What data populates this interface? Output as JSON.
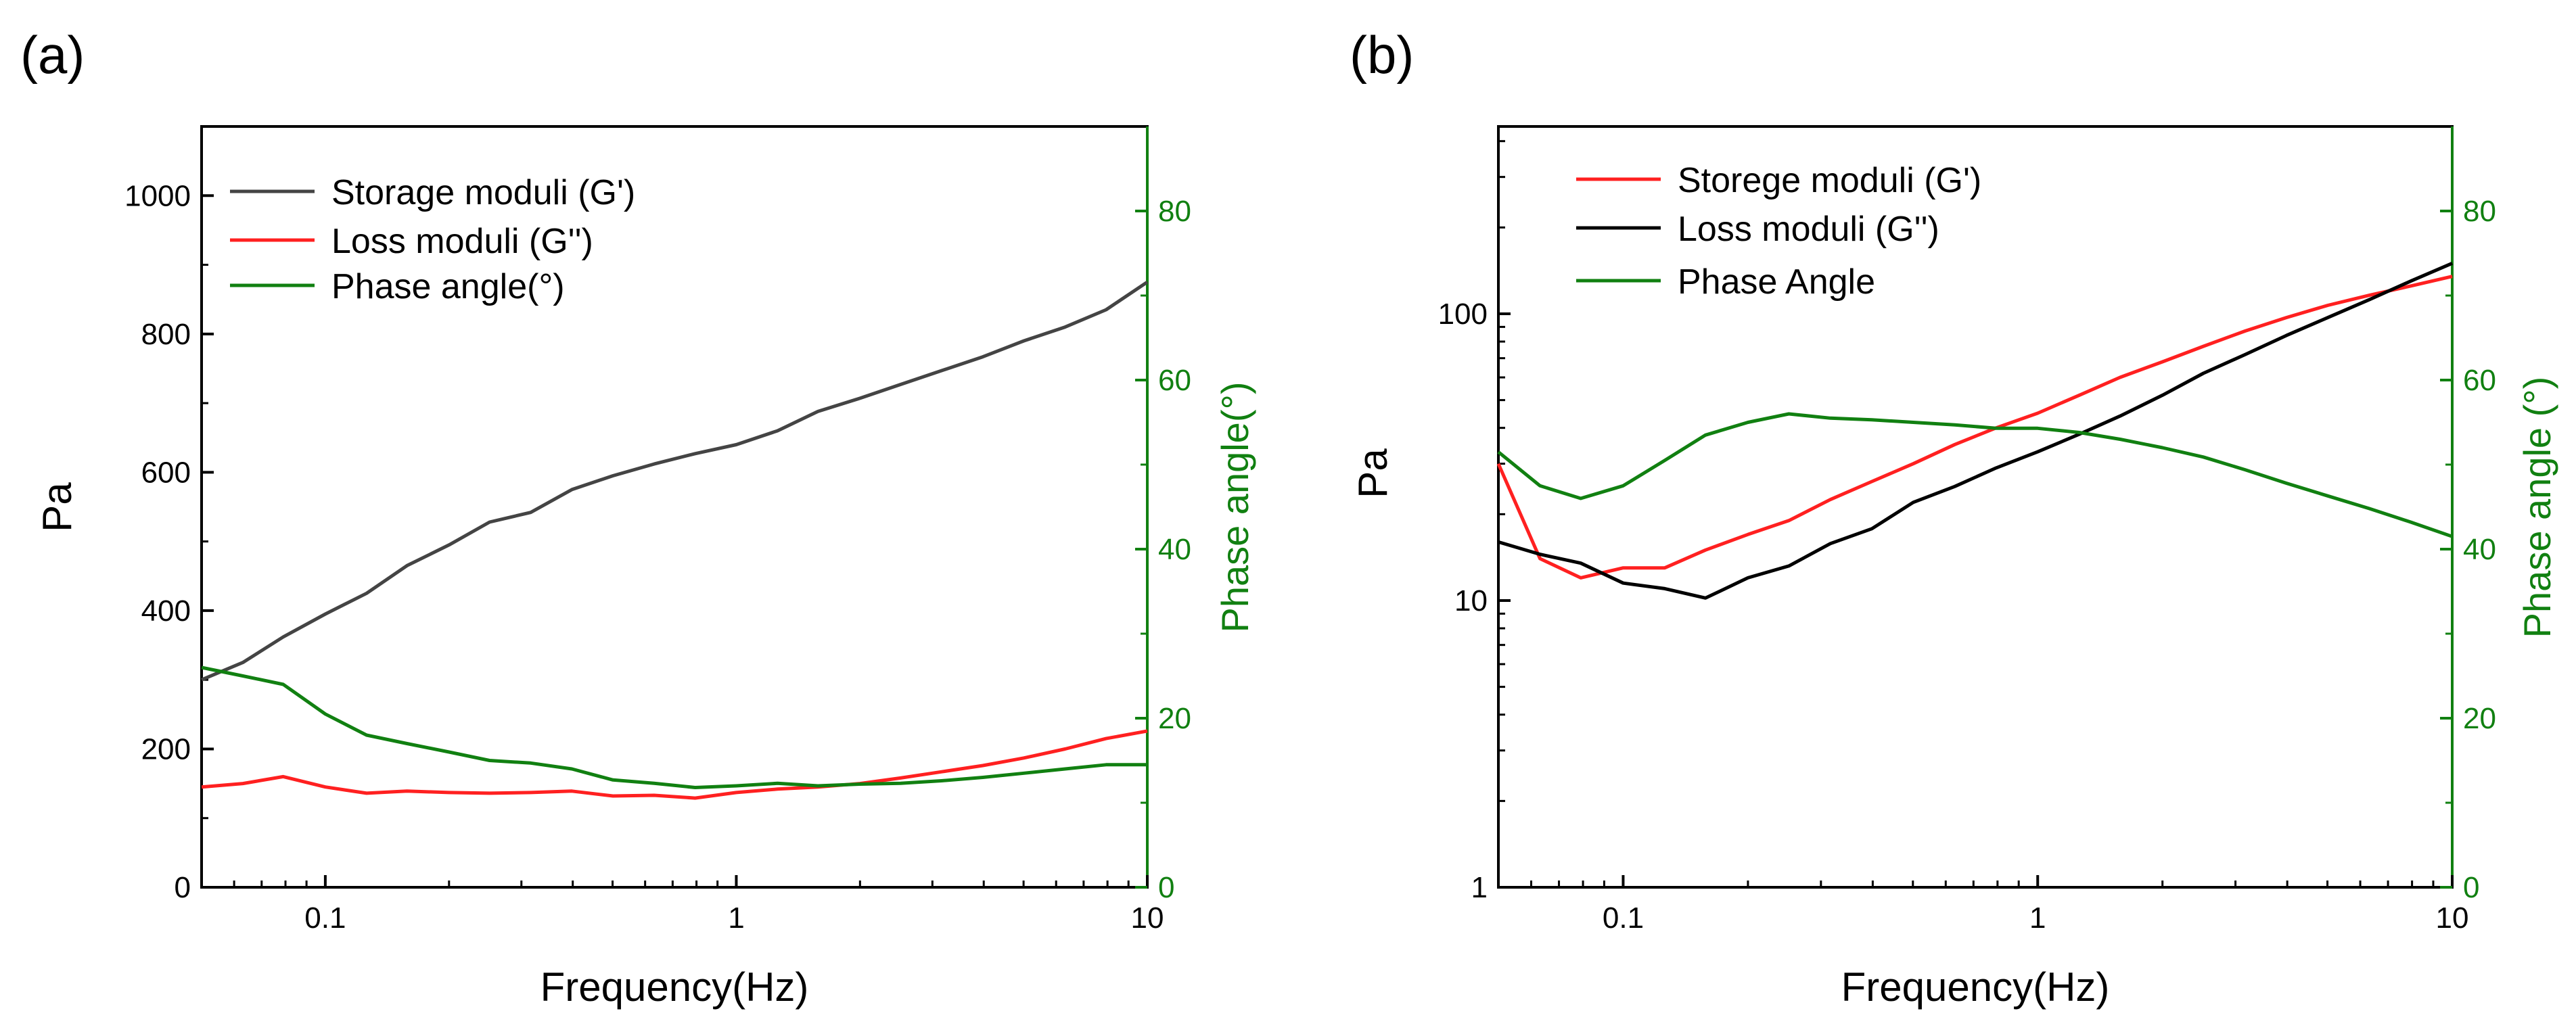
{
  "chart_data": [
    {
      "type": "line",
      "panel_label": "(a)",
      "xlabel": "Frequency(Hz)",
      "ylabel": "Pa",
      "y2label": "Phase angle(°)",
      "xscale": "log",
      "xlim": [
        0.05,
        10
      ],
      "ylim": [
        0,
        1100
      ],
      "y2lim": [
        0,
        90
      ],
      "x_ticks": [
        0.1,
        1,
        10
      ],
      "x_tick_labels": [
        "0.1",
        "1",
        "10"
      ],
      "y_ticks": [
        0,
        200,
        400,
        600,
        800,
        1000
      ],
      "y_tick_labels": [
        "0",
        "200",
        "400",
        "600",
        "800",
        "1000"
      ],
      "y2_ticks": [
        0,
        20,
        40,
        60,
        80
      ],
      "y2_tick_labels": [
        "0",
        "20",
        "40",
        "60",
        "80"
      ],
      "grid": false,
      "legend_position": "top-left",
      "x": [
        0.05,
        0.063,
        0.079,
        0.1,
        0.126,
        0.158,
        0.2,
        0.251,
        0.316,
        0.398,
        0.501,
        0.631,
        0.794,
        1,
        1.26,
        1.58,
        2,
        2.51,
        3.16,
        3.98,
        5.01,
        6.31,
        7.94,
        10
      ],
      "series": [
        {
          "name": "Storage moduli (G')",
          "axis": "left",
          "color": "#444444",
          "values": [
            300,
            325,
            362,
            395,
            425,
            465,
            495,
            528,
            542,
            575,
            595,
            612,
            627,
            640,
            660,
            688,
            707,
            727,
            747,
            767,
            790,
            810,
            835,
            875
          ]
        },
        {
          "name": "Loss moduli (G'')",
          "axis": "left",
          "color": "#ff2020",
          "values": [
            145,
            150,
            160,
            145,
            136,
            139,
            137,
            136,
            137,
            139,
            132,
            133,
            129,
            137,
            142,
            145,
            150,
            158,
            167,
            176,
            187,
            200,
            215,
            226
          ]
        },
        {
          "name": "Phase angle(°)",
          "axis": "right",
          "color": "#118011",
          "values": [
            26,
            25,
            24,
            20.5,
            18,
            17,
            16,
            15,
            14.7,
            14,
            12.7,
            12.3,
            11.8,
            12,
            12.3,
            12,
            12.2,
            12.3,
            12.6,
            13,
            13.5,
            14,
            14.5,
            14.5
          ]
        }
      ]
    },
    {
      "type": "line",
      "panel_label": "(b)",
      "xlabel": "Frequency(Hz)",
      "ylabel": "Pa",
      "y2label": "Phase angle (°)",
      "xscale": "log",
      "yscale": "log",
      "xlim": [
        0.05,
        10
      ],
      "ylim": [
        1,
        450
      ],
      "y2lim": [
        0,
        90
      ],
      "x_ticks": [
        0.1,
        1,
        10
      ],
      "x_tick_labels": [
        "0.1",
        "1",
        "10"
      ],
      "y_ticks": [
        1,
        10,
        100
      ],
      "y_tick_labels": [
        "1",
        "10",
        "100"
      ],
      "y2_ticks": [
        0,
        20,
        40,
        60,
        80
      ],
      "y2_tick_labels": [
        "0",
        "20",
        "40",
        "60",
        "80"
      ],
      "grid": false,
      "legend_position": "top-left",
      "x": [
        0.05,
        0.063,
        0.079,
        0.1,
        0.126,
        0.158,
        0.2,
        0.251,
        0.316,
        0.398,
        0.501,
        0.631,
        0.794,
        1,
        1.26,
        1.58,
        2,
        2.51,
        3.16,
        3.98,
        5.01,
        6.31,
        7.94,
        10
      ],
      "series": [
        {
          "name": "Storege moduli (G')",
          "axis": "left",
          "color": "#ff2020",
          "values": [
            30,
            14,
            12,
            13,
            13,
            15,
            17,
            19,
            22.5,
            26,
            30,
            35,
            40,
            45,
            52,
            60,
            68,
            77,
            87,
            97,
            107,
            116,
            125,
            135
          ]
        },
        {
          "name": "Loss moduli (G'')",
          "axis": "left",
          "color": "#000000",
          "values": [
            16,
            14.5,
            13.5,
            11.5,
            11,
            10.2,
            12,
            13.2,
            15.8,
            17.8,
            22,
            25,
            29,
            33,
            38,
            44,
            52,
            62,
            72,
            84,
            97,
            112,
            130,
            150
          ]
        },
        {
          "name": "Phase Angle",
          "axis": "right",
          "color": "#118011",
          "values": [
            51.5,
            47.5,
            46,
            47.5,
            50.5,
            53.5,
            55,
            56,
            55.5,
            55.3,
            55,
            54.7,
            54.3,
            54.3,
            53.8,
            53,
            52,
            50.9,
            49.4,
            47.8,
            46.3,
            44.8,
            43.2,
            41.5
          ]
        }
      ]
    }
  ]
}
